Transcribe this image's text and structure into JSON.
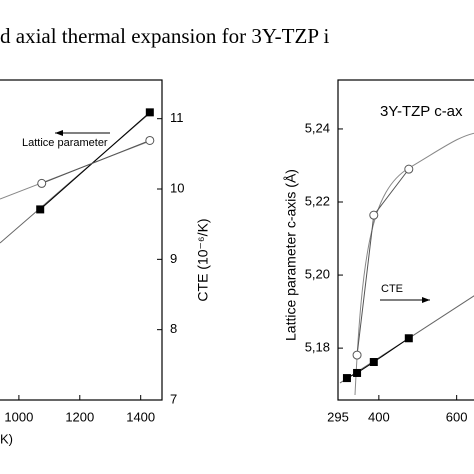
{
  "title": "d axial thermal expansion for 3Y-TZP i",
  "chart_data": [
    {
      "type": "scatter",
      "xlabel": "K)",
      "ylabel": "CTE (10⁻⁶/K)",
      "yaxis_position": "right",
      "xlim": [
        800,
        1470
      ],
      "xticks": [
        1000,
        1200,
        1400
      ],
      "ylim": [
        7,
        11.55
      ],
      "yticks": [
        7,
        8,
        9,
        10,
        11
      ],
      "annotations": [
        {
          "text": "Lattice parameter"
        }
      ],
      "series": [
        {
          "marker": "square",
          "filled": true,
          "color": "#000000",
          "x": [
            1070,
            1430
          ],
          "values": [
            9.71,
            11.09
          ]
        },
        {
          "marker": "circle",
          "filled": false,
          "color": "#555555",
          "x": [
            1075,
            1430
          ],
          "values": [
            10.08,
            10.69
          ]
        }
      ]
    },
    {
      "type": "scatter",
      "ylabel": "Lattice parameter c-axis (Å)",
      "yaxis_position": "left",
      "xlim": [
        295,
        660
      ],
      "xticks": [
        295,
        400,
        600
      ],
      "ylim": [
        5.1658,
        5.2534
      ],
      "yticks": [
        {
          "value": 5.18,
          "label": "5,18"
        },
        {
          "value": 5.2,
          "label": "5,20"
        },
        {
          "value": 5.22,
          "label": "5,22"
        },
        {
          "value": 5.24,
          "label": "5,24"
        }
      ],
      "annotations": [
        {
          "text": "3Y-TZP c-ax"
        },
        {
          "text": "CTE"
        }
      ],
      "series": [
        {
          "marker": "square",
          "filled": true,
          "color": "#000000",
          "x": [
            318,
            344,
            387,
            477
          ],
          "values": [
            5.1718,
            5.1732,
            5.1762,
            5.1827
          ]
        },
        {
          "marker": "circle",
          "filled": false,
          "color": "#555555",
          "x": [
            344,
            387,
            477
          ],
          "values": [
            5.1781,
            5.2164,
            5.229
          ]
        }
      ]
    }
  ]
}
